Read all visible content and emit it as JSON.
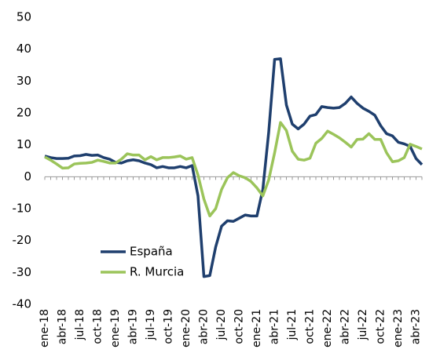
{
  "chart_data": {
    "type": "line",
    "categories": [
      "ene-18",
      null,
      null,
      "abr-18",
      null,
      null,
      "jul-18",
      null,
      null,
      "oct-18",
      null,
      null,
      "ene-19",
      null,
      null,
      "abr-19",
      null,
      null,
      "jul-19",
      null,
      null,
      "oct-19",
      null,
      null,
      "ene-20",
      null,
      null,
      "abr-20",
      null,
      null,
      "jul-20",
      null,
      null,
      "oct-20",
      null,
      null,
      "ene-21",
      null,
      null,
      "abr-21",
      null,
      null,
      "jul-21",
      null,
      null,
      "oct-21",
      null,
      null,
      "ene-22",
      null,
      null,
      "abr-22",
      null,
      null,
      "jul-22",
      null,
      null,
      "oct-22",
      null,
      null,
      "ene-23",
      null,
      null,
      "abr-23",
      null
    ],
    "series": [
      {
        "name": "España",
        "color": "#1f3f6e",
        "values": [
          6.5,
          6,
          5.7,
          5.7,
          5.8,
          6.5,
          6.6,
          7,
          6.7,
          6.8,
          6,
          5.5,
          4.5,
          4.3,
          5,
          5.3,
          5,
          4.3,
          3.8,
          2.8,
          3.2,
          2.8,
          2.8,
          3.2,
          2.8,
          3.5,
          -6,
          -31.3,
          -31,
          -22,
          -15.5,
          -13.8,
          -14,
          -13,
          -12,
          -12.3,
          -12.3,
          -4,
          14,
          36.8,
          37,
          22.5,
          16.5,
          15,
          16.5,
          19,
          19.5,
          22,
          21.7,
          21.5,
          21.7,
          23,
          25,
          23,
          21.5,
          20.5,
          19.3,
          16,
          13.5,
          12.8,
          10.8,
          10.3,
          9.5,
          5.7,
          3.8
        ]
      },
      {
        "name": "R. Murcia",
        "color": "#9bc45a",
        "values": [
          6.2,
          5.2,
          4,
          2.7,
          2.8,
          4,
          4.2,
          4.3,
          4.5,
          5.2,
          4.8,
          4.3,
          4.3,
          5.5,
          7.2,
          6.8,
          6.8,
          5.3,
          6.3,
          5.3,
          6,
          6,
          6.2,
          6.5,
          5.5,
          6,
          0.5,
          -7,
          -12.3,
          -10,
          -4,
          -0.3,
          1.3,
          0.3,
          -0.3,
          -1.5,
          -3.5,
          -6,
          -1,
          7.5,
          17,
          14.5,
          8,
          5.5,
          5.2,
          5.8,
          10.5,
          12,
          14.3,
          13.3,
          12.2,
          10.8,
          9.3,
          11.7,
          11.8,
          13.5,
          11.7,
          11.7,
          7.5,
          4.7,
          5,
          6,
          10.2,
          9.5,
          8.7
        ]
      }
    ],
    "ylim": [
      -40,
      50
    ],
    "yticks": [
      -40,
      -30,
      -20,
      -10,
      0,
      10,
      20,
      30,
      40,
      50
    ],
    "grid": false
  }
}
